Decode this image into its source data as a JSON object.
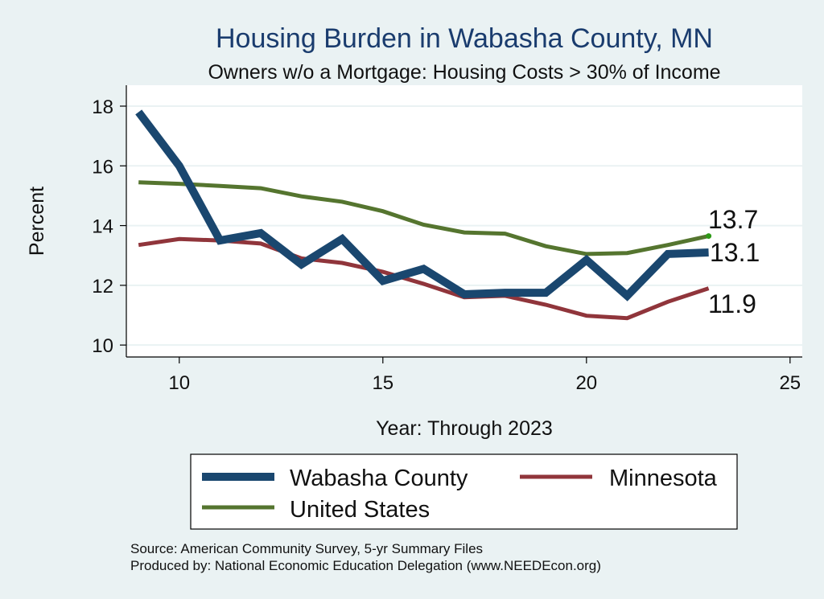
{
  "chart_data": {
    "type": "line",
    "title": "Housing Burden in Wabasha County, MN",
    "subtitle": "Owners w/o a Mortgage: Housing Costs > 30% of Income",
    "xlabel": "Year: Through 2023",
    "ylabel": "Percent",
    "xlim": [
      8.7,
      25.3
    ],
    "ylim": [
      9.6,
      18.7
    ],
    "xticks": [
      10,
      15,
      20,
      25
    ],
    "yticks": [
      10,
      12,
      14,
      16,
      18
    ],
    "x": [
      9,
      10,
      11,
      12,
      13,
      14,
      15,
      16,
      17,
      18,
      19,
      20,
      21,
      22,
      23
    ],
    "series": [
      {
        "name": "Wabasha County",
        "color": "#1a476f",
        "values": [
          17.8,
          16.0,
          13.5,
          13.75,
          12.7,
          13.55,
          12.15,
          12.55,
          11.7,
          11.75,
          11.75,
          12.85,
          11.65,
          13.05,
          13.1
        ]
      },
      {
        "name": "Minnesota",
        "color": "#90353b",
        "values": [
          13.35,
          13.55,
          13.5,
          13.4,
          12.9,
          12.75,
          12.45,
          12.05,
          11.6,
          11.65,
          11.35,
          10.98,
          10.9,
          11.45,
          11.9
        ]
      },
      {
        "name": "United States",
        "color": "#55752f",
        "values": [
          15.45,
          15.4,
          15.33,
          15.25,
          14.98,
          14.8,
          14.48,
          14.03,
          13.77,
          13.73,
          13.31,
          13.05,
          13.08,
          13.35,
          13.65
        ]
      }
    ],
    "end_labels": [
      "13.1",
      "11.9",
      "13.7"
    ],
    "legend": {
      "placement": "bottom",
      "entries": [
        "Wabasha County",
        "Minnesota",
        "United States"
      ]
    }
  },
  "footer": {
    "source": "Source: American Community Survey, 5-yr Summary Files",
    "produced_by": "Produced by: National Economic Education Delegation (www.NEEDEcon.org)"
  }
}
